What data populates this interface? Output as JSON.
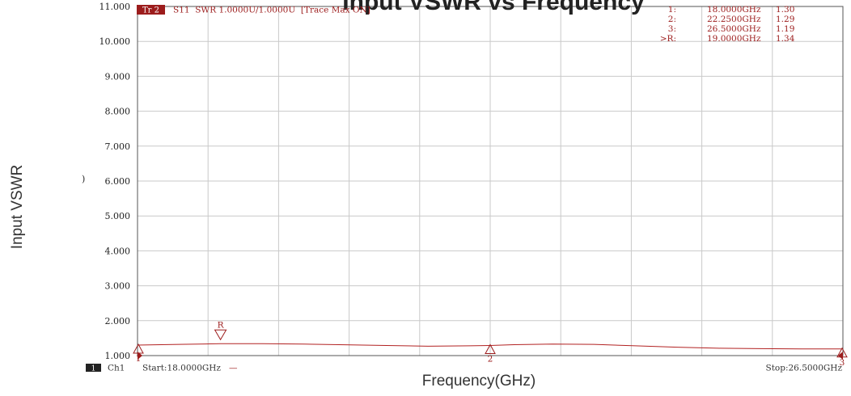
{
  "chart_data": {
    "type": "line",
    "title": "Input VSWR vs Frequency",
    "xlabel": "Frequency(GHz)",
    "ylabel": "Input VSWR",
    "ylim": [
      1.0,
      11.0
    ],
    "xlim": [
      18.0,
      26.5
    ],
    "grid": true,
    "y_ticks": [
      "1.000",
      "2.000",
      "3.000",
      "4.000",
      "5.000",
      "6.000",
      "7.000",
      "8.000",
      "9.000",
      "10.000",
      "11.000"
    ],
    "series": [
      {
        "x": [
          18.0,
          18.5,
          19.0,
          19.5,
          20.0,
          20.5,
          21.0,
          21.5,
          22.0,
          22.25,
          22.5,
          23.0,
          23.5,
          24.0,
          24.5,
          25.0,
          25.5,
          26.0,
          26.5
        ],
        "y": [
          1.3,
          1.32,
          1.34,
          1.34,
          1.33,
          1.31,
          1.29,
          1.27,
          1.28,
          1.29,
          1.31,
          1.33,
          1.32,
          1.28,
          1.24,
          1.21,
          1.2,
          1.19,
          1.19
        ]
      }
    ],
    "instrument": {
      "trace_tag": "Tr 2",
      "trace_header": "S11  SWR 1.0000U/1.0000U  [Trace Max ON]",
      "marker_table": [
        {
          "label": "1:",
          "freq": "18.0000GHz",
          "value": "1.30"
        },
        {
          "label": "2:",
          "freq": "22.2500GHz",
          "value": "1.29"
        },
        {
          "label": "3:",
          "freq": "26.5000GHz",
          "value": "1.19"
        },
        {
          "label": ">R:",
          "freq": "19.0000GHz",
          "value": "1.34"
        }
      ],
      "markers": [
        {
          "label": "1",
          "x": 18.0,
          "y": 1.3,
          "dir": "up"
        },
        {
          "label": "2",
          "x": 22.25,
          "y": 1.29,
          "dir": "up"
        },
        {
          "label": "3",
          "x": 26.5,
          "y": 1.19,
          "dir": "up"
        },
        {
          "label": "R",
          "x": 19.0,
          "y": 1.34,
          "dir": "down"
        }
      ],
      "channel_badge": "1",
      "channel": "Ch1",
      "start": "Start:18.0000GHz",
      "start_dash": "—",
      "stop": "Stop:26.5000GHz",
      "side_glyph": ")"
    },
    "colors": {
      "trace": "#b22222",
      "accent": "#9c1c1c",
      "grid": "#c9c9c9"
    }
  }
}
